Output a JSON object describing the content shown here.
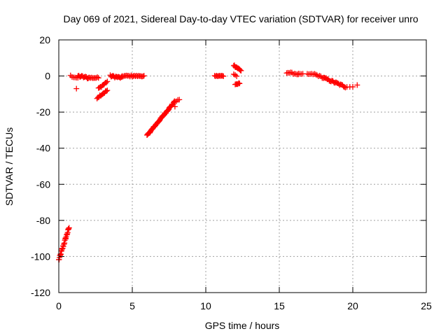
{
  "chart_data": {
    "type": "scatter",
    "title": "Day 069 of 2021, Sidereal Day-to-day VTEC variation (SDTVAR) for receiver unro",
    "xlabel": "GPS time / hours",
    "ylabel": "SDTVAR / TECUs",
    "xlim": [
      0,
      25
    ],
    "ylim": [
      -120,
      20
    ],
    "xticks": [
      0,
      5,
      10,
      15,
      20,
      25
    ],
    "yticks": [
      20,
      0,
      -20,
      -40,
      -60,
      -80,
      -100,
      -120
    ],
    "grid": true,
    "marker": "+",
    "color": "#ff0000",
    "segments": [
      {
        "x0": 0.0,
        "y0": -102,
        "x1": 0.7,
        "y1": -84,
        "n": 30,
        "spread": 1.5
      },
      {
        "x0": 0.8,
        "y0": 0,
        "x1": 1.3,
        "y1": -1,
        "n": 6,
        "spread": 1.0
      },
      {
        "x0": 1.2,
        "y0": -7,
        "x1": 1.2,
        "y1": -7,
        "n": 1,
        "spread": 0
      },
      {
        "x0": 1.3,
        "y0": 0,
        "x1": 2.0,
        "y1": -1,
        "n": 12,
        "spread": 1.2
      },
      {
        "x0": 2.0,
        "y0": -1,
        "x1": 2.7,
        "y1": -1,
        "n": 10,
        "spread": 0.8
      },
      {
        "x0": 2.6,
        "y0": -12,
        "x1": 3.3,
        "y1": -8,
        "n": 12,
        "spread": 1.0
      },
      {
        "x0": 2.7,
        "y0": -7,
        "x1": 3.3,
        "y1": -3,
        "n": 10,
        "spread": 1.0
      },
      {
        "x0": 3.5,
        "y0": 0,
        "x1": 4.3,
        "y1": -1,
        "n": 14,
        "spread": 1.0
      },
      {
        "x0": 4.3,
        "y0": 0,
        "x1": 5.0,
        "y1": 0,
        "n": 10,
        "spread": 0.8
      },
      {
        "x0": 5.0,
        "y0": 0,
        "x1": 5.8,
        "y1": 0,
        "n": 12,
        "spread": 0.6
      },
      {
        "x0": 6.0,
        "y0": -33,
        "x1": 7.9,
        "y1": -14,
        "n": 60,
        "spread": 0.8
      },
      {
        "x0": 7.9,
        "y0": -17,
        "x1": 7.9,
        "y1": -17,
        "n": 1,
        "spread": 0
      },
      {
        "x0": 8.0,
        "y0": -14,
        "x1": 8.2,
        "y1": -13,
        "n": 3,
        "spread": 0.5
      },
      {
        "x0": 10.6,
        "y0": 0,
        "x1": 11.2,
        "y1": 0,
        "n": 10,
        "spread": 0.6
      },
      {
        "x0": 11.9,
        "y0": 6,
        "x1": 12.4,
        "y1": 3,
        "n": 12,
        "spread": 0.8
      },
      {
        "x0": 11.9,
        "y0": 1,
        "x1": 12.1,
        "y1": 0,
        "n": 3,
        "spread": 0.5
      },
      {
        "x0": 12.0,
        "y0": -5,
        "x1": 12.3,
        "y1": -4,
        "n": 6,
        "spread": 0.7
      },
      {
        "x0": 15.5,
        "y0": 2,
        "x1": 16.3,
        "y1": 1,
        "n": 10,
        "spread": 0.8
      },
      {
        "x0": 16.3,
        "y0": 1,
        "x1": 16.6,
        "y1": 1,
        "n": 4,
        "spread": 0.5
      },
      {
        "x0": 16.9,
        "y0": 1,
        "x1": 17.4,
        "y1": 1,
        "n": 6,
        "spread": 0.6
      },
      {
        "x0": 17.4,
        "y0": 1,
        "x1": 18.0,
        "y1": -1,
        "n": 8,
        "spread": 0.8
      },
      {
        "x0": 18.0,
        "y0": -1,
        "x1": 19.5,
        "y1": -6,
        "n": 24,
        "spread": 1.0
      },
      {
        "x0": 19.6,
        "y0": -6,
        "x1": 20.0,
        "y1": -6,
        "n": 3,
        "spread": 0.3
      },
      {
        "x0": 20.3,
        "y0": -5,
        "x1": 20.3,
        "y1": -5,
        "n": 1,
        "spread": 0
      }
    ]
  }
}
